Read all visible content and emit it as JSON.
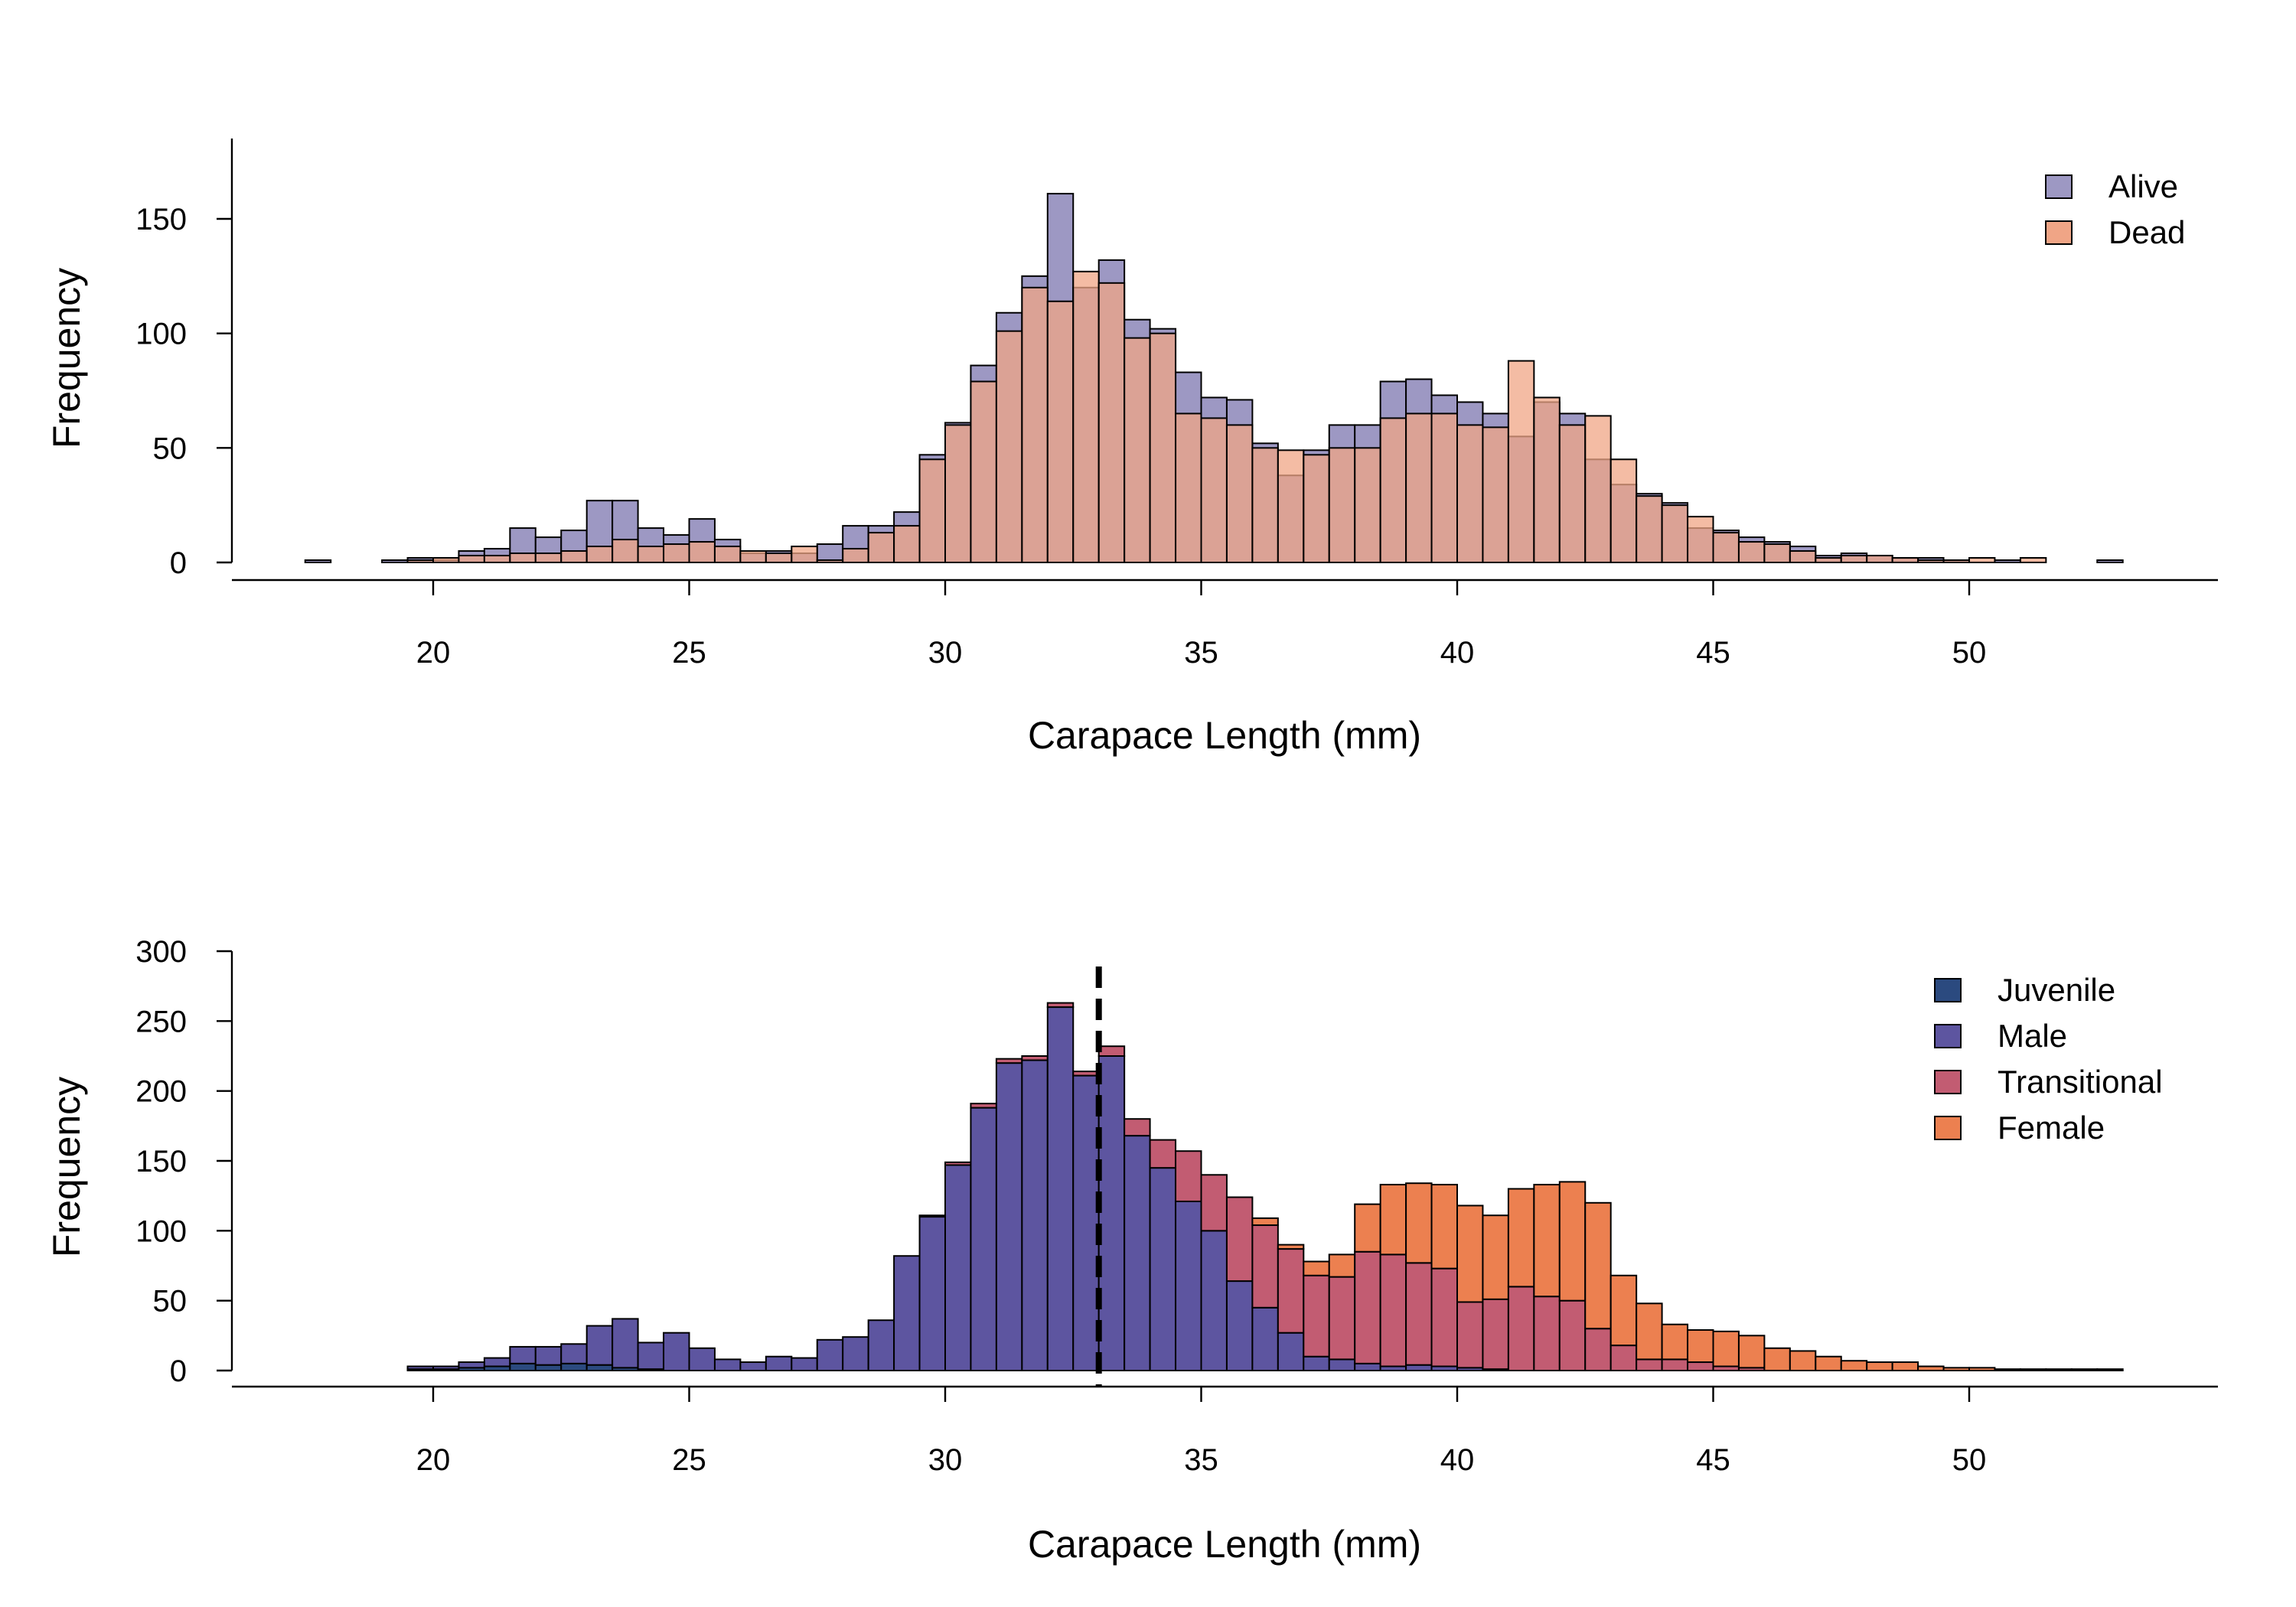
{
  "chart_data": [
    {
      "type": "bar",
      "stacked": false,
      "overlay": true,
      "bin_width": 0.5,
      "bin_start": 17.5,
      "xlabel": "Carapace Length (mm)",
      "ylabel": "Frequency",
      "xlim": [
        17.5,
        53.5
      ],
      "ylim": [
        0,
        180
      ],
      "xticks": [
        20,
        25,
        30,
        35,
        40,
        45,
        50
      ],
      "yticks": [
        0,
        50,
        100,
        150
      ],
      "legend_position": "top-right",
      "series": [
        {
          "name": "Alive",
          "color": "#9d98c3",
          "values": [
            1,
            0,
            0,
            1,
            2,
            1,
            5,
            6,
            15,
            11,
            14,
            27,
            27,
            15,
            12,
            19,
            10,
            4,
            5,
            4,
            8,
            16,
            16,
            22,
            47,
            61,
            86,
            109,
            125,
            161,
            120,
            132,
            106,
            102,
            83,
            72,
            71,
            52,
            38,
            49,
            60,
            60,
            79,
            80,
            73,
            70,
            65,
            55,
            70,
            65,
            45,
            34,
            30,
            26,
            15,
            14,
            11,
            9,
            7,
            3,
            4,
            3,
            2,
            2,
            1,
            0,
            1,
            0,
            0,
            0,
            1,
            0
          ],
          "value_labels": [
            "1",
            "0",
            "0",
            "1",
            "2",
            "1",
            "5",
            "6",
            "15",
            "11",
            "14",
            "27",
            "27",
            "15",
            "12",
            "19",
            "10",
            "4",
            "5",
            "4",
            "8",
            "16",
            "16",
            "22",
            "47",
            "61",
            "86",
            "109",
            "125",
            "161",
            "120",
            "132",
            "106",
            "102",
            "83",
            "72",
            "71",
            "52",
            "38",
            "49",
            "60",
            "60",
            "79",
            "80",
            "73",
            "70",
            "65",
            "55",
            "70",
            "65",
            "45",
            "34",
            "30",
            "26",
            "15",
            "14",
            "11",
            "9",
            "7",
            "3",
            "4",
            "3",
            "2",
            "2",
            "1",
            "0",
            "1",
            "0",
            "0",
            "0",
            "1",
            "0"
          ]
        },
        {
          "name": "Dead",
          "color": "#f0a586",
          "values": [
            0,
            0,
            0,
            0,
            1,
            2,
            3,
            3,
            4,
            4,
            5,
            7,
            10,
            7,
            8,
            9,
            7,
            5,
            4,
            7,
            1,
            6,
            13,
            16,
            45,
            60,
            79,
            101,
            120,
            114,
            127,
            122,
            98,
            100,
            65,
            63,
            60,
            50,
            49,
            47,
            50,
            50,
            63,
            65,
            65,
            60,
            59,
            88,
            72,
            60,
            64,
            45,
            29,
            25,
            20,
            13,
            9,
            8,
            5,
            2,
            3,
            3,
            2,
            1,
            1,
            2,
            0,
            2,
            0,
            0,
            0,
            0
          ],
          "value_labels": [
            "0",
            "0",
            "0",
            "0",
            "1",
            "2",
            "3",
            "3",
            "4",
            "4",
            "5",
            "7",
            "10",
            "7",
            "8",
            "9",
            "7",
            "5",
            "4",
            "7",
            "1",
            "6",
            "13",
            "16",
            "45",
            "60",
            "79",
            "101",
            "120",
            "114",
            "127",
            "122",
            "98",
            "100",
            "65",
            "63",
            "60",
            "50",
            "49",
            "47",
            "50",
            "50",
            "63",
            "65",
            "65",
            "60",
            "59",
            "88",
            "72",
            "60",
            "64",
            "45",
            "29",
            "25",
            "20",
            "13",
            "9",
            "8",
            "5",
            "2",
            "3",
            "3",
            "2",
            "1",
            "1",
            "2",
            "0",
            "2",
            "0",
            "0",
            "0",
            "0"
          ]
        }
      ]
    },
    {
      "type": "bar",
      "stacked": true,
      "bin_width": 0.5,
      "bin_start": 17.5,
      "xlabel": "Carapace Length (mm)",
      "ylabel": "Frequency",
      "xlim": [
        17.5,
        53.5
      ],
      "ylim": [
        0,
        300
      ],
      "xticks": [
        20,
        25,
        30,
        35,
        40,
        45,
        50
      ],
      "yticks": [
        0,
        50,
        100,
        150,
        200,
        250,
        300
      ],
      "vline": {
        "x": 33,
        "style": "dashed",
        "color": "#000000"
      },
      "legend_position": "top-right",
      "series": [
        {
          "name": "Juvenile",
          "color": "#2b4a7f",
          "values": [
            0,
            0,
            0,
            0,
            1,
            1,
            2,
            3,
            5,
            4,
            5,
            4,
            2,
            1,
            0,
            0,
            0,
            0,
            0,
            0,
            0,
            0,
            0,
            0,
            0,
            0,
            0,
            0,
            0,
            0,
            0,
            0,
            0,
            0,
            0,
            0,
            0,
            0,
            0,
            0,
            0,
            0,
            0,
            0,
            0,
            0,
            0,
            0,
            0,
            0,
            0,
            0,
            0,
            0,
            0,
            0,
            0,
            0,
            0,
            0,
            0,
            0,
            0,
            0,
            0,
            0,
            0,
            0,
            0,
            0,
            0,
            0
          ],
          "value_labels": [
            "0",
            "0",
            "0",
            "0",
            "1",
            "1",
            "2",
            "3",
            "5",
            "4",
            "5",
            "4",
            "2",
            "1",
            "0",
            "0",
            "0",
            "0",
            "0",
            "0",
            "0",
            "0",
            "0",
            "0",
            "0",
            "0",
            "0",
            "0",
            "0",
            "0",
            "0",
            "0",
            "0",
            "0",
            "0",
            "0",
            "0",
            "0",
            "0",
            "0",
            "0",
            "0",
            "0",
            "0",
            "0",
            "0",
            "0",
            "0",
            "0",
            "0",
            "0",
            "0",
            "0",
            "0",
            "0",
            "0",
            "0",
            "0",
            "0",
            "0",
            "0",
            "0",
            "0",
            "0",
            "0",
            "0",
            "0",
            "0",
            "0",
            "0",
            "0",
            "0"
          ]
        },
        {
          "name": "Male",
          "color": "#5d55a0",
          "values": [
            0,
            0,
            0,
            0,
            2,
            2,
            4,
            6,
            12,
            13,
            14,
            28,
            35,
            19,
            27,
            16,
            8,
            6,
            10,
            9,
            22,
            24,
            36,
            82,
            110,
            147,
            188,
            220,
            222,
            260,
            211,
            225,
            168,
            145,
            121,
            100,
            64,
            45,
            27,
            10,
            8,
            5,
            3,
            4,
            3,
            2,
            1,
            0,
            0,
            0,
            0,
            0,
            0,
            0,
            0,
            0,
            0,
            0,
            0,
            0,
            0,
            0,
            0,
            0,
            0,
            0,
            0,
            0,
            0,
            0,
            0,
            0
          ],
          "value_labels": [
            "0",
            "0",
            "0",
            "0",
            "2",
            "2",
            "4",
            "6",
            "12",
            "13",
            "14",
            "28",
            "35",
            "19",
            "27",
            "16",
            "8",
            "6",
            "10",
            "9",
            "22",
            "24",
            "36",
            "82",
            "110",
            "147",
            "188",
            "220",
            "222",
            "260",
            "211",
            "225",
            "168",
            "145",
            "121",
            "100",
            "64",
            "45",
            "27",
            "10",
            "8",
            "5",
            "3",
            "4",
            "3",
            "2",
            "1",
            "0",
            "0",
            "0",
            "0",
            "0",
            "0",
            "0",
            "0",
            "0",
            "0",
            "0",
            "0",
            "0",
            "0",
            "0",
            "0",
            "0",
            "0",
            "0",
            "0",
            "0",
            "0",
            "0",
            "0",
            "0"
          ]
        },
        {
          "name": "Transitional",
          "color": "#c25c72",
          "values": [
            0,
            0,
            0,
            0,
            0,
            0,
            0,
            0,
            0,
            0,
            0,
            0,
            0,
            0,
            0,
            0,
            0,
            0,
            0,
            0,
            0,
            0,
            0,
            0,
            1,
            2,
            3,
            3,
            3,
            3,
            3,
            7,
            12,
            20,
            36,
            40,
            60,
            59,
            60,
            58,
            59,
            80,
            80,
            73,
            70,
            47,
            50,
            60,
            53,
            50,
            30,
            18,
            8,
            8,
            6,
            3,
            2,
            0,
            0,
            0,
            0,
            0,
            0,
            0,
            0,
            0,
            0,
            0,
            0,
            0,
            0,
            0
          ],
          "value_labels": [
            "0",
            "0",
            "0",
            "0",
            "0",
            "0",
            "0",
            "0",
            "0",
            "0",
            "0",
            "0",
            "0",
            "0",
            "0",
            "0",
            "0",
            "0",
            "0",
            "0",
            "0",
            "0",
            "0",
            "0",
            "1",
            "2",
            "3",
            "3",
            "3",
            "3",
            "3",
            "7",
            "12",
            "20",
            "36",
            "40",
            "60",
            "59",
            "60",
            "58",
            "59",
            "80",
            "80",
            "73",
            "70",
            "47",
            "50",
            "60",
            "53",
            "50",
            "30",
            "18",
            "8",
            "8",
            "6",
            "3",
            "2",
            "0",
            "0",
            "0",
            "0",
            "0",
            "0",
            "0",
            "0",
            "0",
            "0",
            "0",
            "0",
            "0",
            "0",
            "0"
          ]
        },
        {
          "name": "Female",
          "color": "#ec8050",
          "values": [
            0,
            0,
            0,
            0,
            0,
            0,
            0,
            0,
            0,
            0,
            0,
            0,
            0,
            0,
            0,
            0,
            0,
            0,
            0,
            0,
            0,
            0,
            0,
            0,
            0,
            0,
            0,
            0,
            0,
            0,
            0,
            0,
            0,
            0,
            0,
            0,
            0,
            5,
            3,
            10,
            16,
            34,
            50,
            57,
            60,
            69,
            60,
            70,
            80,
            85,
            90,
            50,
            40,
            25,
            23,
            25,
            23,
            16,
            14,
            10,
            7,
            6,
            6,
            3,
            2,
            2,
            1,
            1,
            1,
            1,
            1,
            0
          ],
          "value_labels": [
            "0",
            "0",
            "0",
            "0",
            "0",
            "0",
            "0",
            "0",
            "0",
            "0",
            "0",
            "0",
            "0",
            "0",
            "0",
            "0",
            "0",
            "0",
            "0",
            "0",
            "0",
            "0",
            "0",
            "0",
            "0",
            "0",
            "0",
            "0",
            "0",
            "0",
            "0",
            "0",
            "0",
            "0",
            "0",
            "0",
            "0",
            "5",
            "3",
            "10",
            "16",
            "34",
            "50",
            "57",
            "60",
            "69",
            "60",
            "70",
            "80",
            "85",
            "90",
            "50",
            "40",
            "25",
            "23",
            "25",
            "23",
            "16",
            "14",
            "10",
            "7",
            "6",
            "6",
            "3",
            "2",
            "2",
            "1",
            "1",
            "1",
            "1",
            "1",
            "0"
          ]
        }
      ]
    }
  ]
}
